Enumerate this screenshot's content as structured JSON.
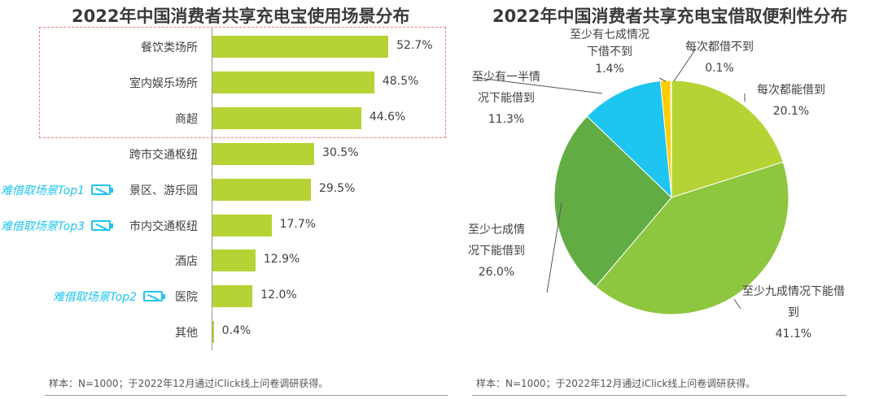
{
  "chart_data": [
    {
      "type": "bar",
      "title": "2022年中国消费者共享充电宝使用场景分布",
      "categories": [
        "餐饮类场所",
        "室内娱乐场所",
        "商超",
        "跨市交通枢纽",
        "景区、游乐园",
        "市内交通枢纽",
        "酒店",
        "医院",
        "其他"
      ],
      "values": [
        52.7,
        48.5,
        44.6,
        30.5,
        29.5,
        17.7,
        12.9,
        12.0,
        0.4
      ],
      "value_labels": [
        "52.7%",
        "48.5%",
        "44.6%",
        "30.5%",
        "29.5%",
        "17.7%",
        "12.9%",
        "12.0%",
        "0.4%"
      ],
      "highlighted": [
        "餐饮类场所",
        "室内娱乐场所",
        "商超"
      ],
      "tags": {
        "4": "难借取场景Top1",
        "5": "难借取场景Top3",
        "7": "难借取场景Top2"
      },
      "bar_color": "#b5d334",
      "tag_color": "#1dc5f0",
      "highlight_color": "#f08080",
      "footnote": "样本：N=1000；于2022年12月通过iClick线上问卷调研获得。"
    },
    {
      "type": "pie",
      "title": "2022年中国消费者共享充电宝借取便利性分布",
      "slices": [
        {
          "label": "每次都能借到",
          "value": 20.1,
          "text": "20.1%",
          "color": "#b5d334"
        },
        {
          "label": "至少九成情况下能借到",
          "value": 41.1,
          "text": "41.1%",
          "color": "#8dc63f"
        },
        {
          "label": "至少七成情况下能借到",
          "value": 26.0,
          "text": "26.0%",
          "color": "#62ac44"
        },
        {
          "label": "至少有一半情况下能借到",
          "value": 11.3,
          "text": "11.3%",
          "color": "#1dc5f0"
        },
        {
          "label": "至少有七成情况下借不到",
          "value": 1.4,
          "text": "1.4%",
          "color": "#ffcc00"
        },
        {
          "label": "每次都借不到",
          "value": 0.1,
          "text": "0.1%",
          "color": "#7fd3ec"
        }
      ],
      "footnote": "样本：N=1000；于2022年12月通过iClick线上问卷调研获得。"
    }
  ],
  "pie_labels": [
    [
      "每次都能借到",
      "20.1%"
    ],
    [
      "至少九成情况下能借",
      "到",
      "41.1%"
    ],
    [
      "至少七成情",
      "况下能借到",
      "26.0%"
    ],
    [
      "至少有一半情",
      "况下能借到",
      "11.3%"
    ],
    [
      "至少有七成情况",
      "下借不到",
      "1.4%"
    ],
    [
      "每次都借不到",
      "0.1%"
    ]
  ]
}
